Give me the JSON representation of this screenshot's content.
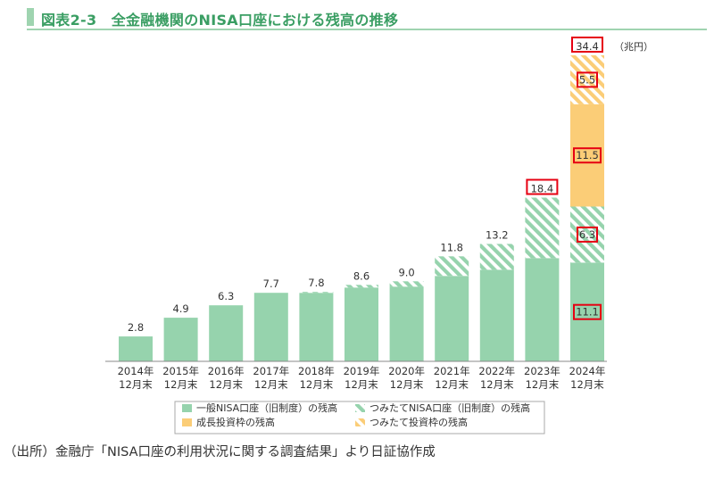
{
  "figure": {
    "title": "図表2-3　全金融機関のNISA口座における残高の推移",
    "unit": "（兆円）",
    "source": "（出所）金融庁「NISA口座の利用状況に関する調査結果」より日証協作成"
  },
  "colors": {
    "general": "#96d3ad",
    "tsumitate": "#96d3ad",
    "growth": "#fbcd77",
    "tsumitate_new": "#fbcd77",
    "highlight_box": "#e60012",
    "axis": "#888888"
  },
  "chart_data": {
    "type": "bar",
    "stacked": true,
    "categories": [
      [
        "2014年",
        "12月末"
      ],
      [
        "2015年",
        "12月末"
      ],
      [
        "2016年",
        "12月末"
      ],
      [
        "2017年",
        "12月末"
      ],
      [
        "2018年",
        "12月末"
      ],
      [
        "2019年",
        "12月末"
      ],
      [
        "2020年",
        "12月末"
      ],
      [
        "2021年",
        "12月末"
      ],
      [
        "2022年",
        "12月末"
      ],
      [
        "2023年",
        "12月末"
      ],
      [
        "2024年",
        "12月末"
      ]
    ],
    "series": [
      {
        "name": "一般NISA口座（旧制度）の残高",
        "key": "general",
        "pattern": "solid",
        "values": [
          2.8,
          4.9,
          6.3,
          7.7,
          7.7,
          8.3,
          8.4,
          9.6,
          10.3,
          11.6,
          11.1
        ]
      },
      {
        "name": "つみたてNISA口座（旧制度）の残高",
        "key": "tsumitate",
        "pattern": "hatch",
        "values": [
          0,
          0,
          0,
          0,
          0.1,
          0.3,
          0.6,
          2.2,
          2.9,
          6.8,
          6.3
        ]
      },
      {
        "name": "成長投資枠の残高",
        "key": "growth",
        "pattern": "solid",
        "values": [
          0,
          0,
          0,
          0,
          0,
          0,
          0,
          0,
          0,
          0,
          11.5
        ]
      },
      {
        "name": "つみたて投資枠の残高",
        "key": "tsumitate_new",
        "pattern": "hatch",
        "values": [
          0,
          0,
          0,
          0,
          0,
          0,
          0,
          0,
          0,
          0,
          5.5
        ]
      }
    ],
    "totals": [
      "2.8",
      "4.9",
      "6.3",
      "7.7",
      "7.8",
      "8.6",
      "9.0",
      "11.8",
      "13.2",
      "18.4",
      "34.4"
    ],
    "boxed_totals": [
      9,
      10
    ],
    "segment_labels": [
      {
        "category": 10,
        "series": 0,
        "text": "11.1"
      },
      {
        "category": 10,
        "series": 1,
        "text": "6.3"
      },
      {
        "category": 10,
        "series": 2,
        "text": "11.5"
      },
      {
        "category": 10,
        "series": 3,
        "text": "5.5"
      }
    ],
    "ylim": [
      0,
      34.4
    ],
    "grid": false,
    "legend_position": "bottom"
  }
}
